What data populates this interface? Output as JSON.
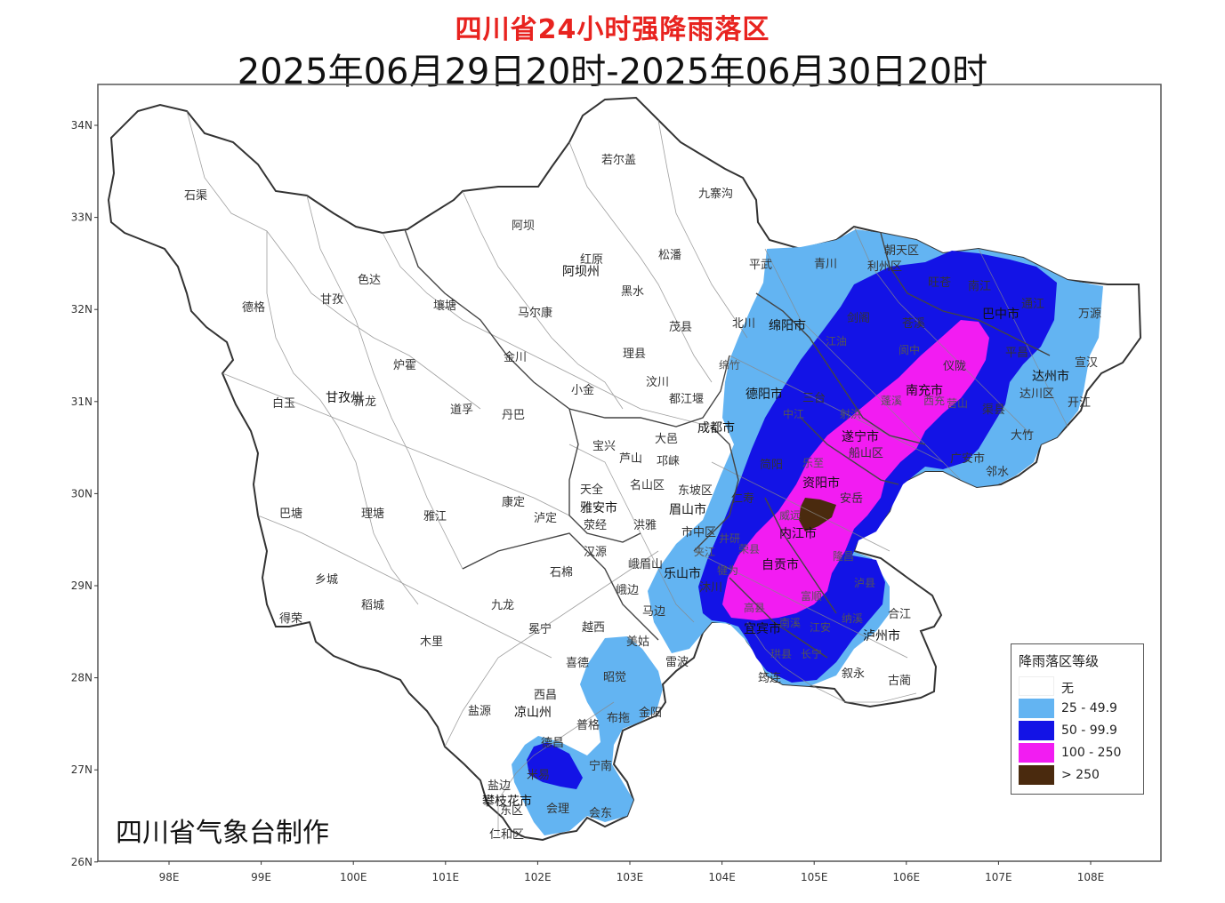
{
  "title": "四川省24小时强降雨落区",
  "subtitle": "2025年06月29日20时-2025年06月30日20时",
  "credit": "四川省气象台制作",
  "lat_labels": [
    "34N",
    "33N",
    "32N",
    "31N",
    "30N",
    "29N",
    "28N",
    "27N",
    "26N"
  ],
  "lon_labels": [
    "98E",
    "99E",
    "100E",
    "101E",
    "102E",
    "103E",
    "104E",
    "105E",
    "106E",
    "107E",
    "108E"
  ],
  "legend": {
    "title": "降雨落区等级",
    "items": [
      {
        "label": "无",
        "color": "#ffffff"
      },
      {
        "label": "25 - 49.9",
        "color": "#63b4f2"
      },
      {
        "label": "50 - 99.9",
        "color": "#1313e6"
      },
      {
        "label": "100 - 250",
        "color": "#f21cf2"
      },
      {
        "label": "> 250",
        "color": "#4a2a0e"
      }
    ]
  },
  "places": {
    "shiqu": "石渠",
    "ruoergai": "若尔盖",
    "jiuzhaigou": "九寨沟",
    "aba": "阿坝",
    "seda": "色达",
    "dege": "德格",
    "ganzi": "甘孜",
    "rangtang": "壤塘",
    "hongyuan": "红原",
    "abazhou": "阿坝州",
    "songpan": "松潘",
    "pingwu": "平武",
    "qingchuan": "青川",
    "chaotian": "朝天区",
    "lizhou": "利州区",
    "wangcang": "旺苍",
    "nanjiang": "南江",
    "tongjiang": "通江",
    "wanyuan": "万源",
    "maerkang": "马尔康",
    "heishui": "黑水",
    "maoxian": "茂县",
    "beichuan": "北川",
    "mianyang": "绵阳市",
    "jiange": "剑阁",
    "cangxi": "苍溪",
    "bazhong": "巴中市",
    "pingchang": "平昌",
    "xuanhan": "宣汉",
    "dazhou": "达州市",
    "luhuo": "炉霍",
    "jinchuan": "金川",
    "lixian": "理县",
    "wenchuan": "汶川",
    "baiyu": "白玉",
    "ganzizhou": "甘孜州",
    "xinlong": "新龙",
    "daofu": "道孚",
    "xiaojin": "小金",
    "danba": "丹巴",
    "dujiangyan": "都江堰",
    "deyang": "德阳市",
    "santai": "三台",
    "nanchong": "南充市",
    "yilong": "仪陇",
    "quxian": "渠县",
    "dachuan": "达川区",
    "kaijiang": "开江",
    "chengdu": "成都市",
    "dayi": "大邑",
    "baoxing": "宝兴",
    "lushan": "芦山",
    "qionglai": "邛崃",
    "suining": "遂宁市",
    "chuanshan": "船山区",
    "dazhu": "大竹",
    "guangan": "广安市",
    "linshui": "邻水",
    "tianquan": "天全",
    "yaan": "雅安市",
    "mingshan": "名山区",
    "dongpo": "东坡区",
    "meishan": "眉山市",
    "jianyang": "简阳",
    "renshou": "仁寿",
    "ziyang": "资阳市",
    "anyue": "安岳",
    "batang": "巴塘",
    "litang": "理塘",
    "yajiang": "雅江",
    "kangding": "康定",
    "luding": "泸定",
    "yingjing": "荥经",
    "hongya": "洪雅",
    "shizhong": "市中区",
    "neijiang": "内江市",
    "hanyuan": "汉源",
    "shimian": "石棉",
    "emeishan": "峨眉山",
    "leshan": "乐山市",
    "zigong": "自贡市",
    "xiangcheng": "乡城",
    "daocheng": "稻城",
    "jiulong": "九龙",
    "ebian": "峨边",
    "mabian": "马边",
    "muchuan": "沐川",
    "yibin": "宜宾市",
    "luzhou": "泸州市",
    "hejiang": "合江",
    "xuyong": "叙永",
    "gulin": "古蔺",
    "junlian": "筠连",
    "derong": "得荣",
    "muli": "木里",
    "mianning": "冕宁",
    "yuexi": "越西",
    "meigu": "美姑",
    "leibo": "雷波",
    "xide": "喜德",
    "zhaojue": "昭觉",
    "xichang": "西昌",
    "liangshan": "凉山州",
    "yanyuan": "盐源",
    "puge": "普格",
    "butuo": "布拖",
    "jinyang": "金阳",
    "dechang": "德昌",
    "miyi": "米易",
    "yanbian": "盐边",
    "panzhihua": "攀枝花市",
    "dongqu": "东区",
    "renhe": "仁和区",
    "huili": "会理",
    "huidong": "会东",
    "ningnan": "宁南",
    "jiangyou": "江油",
    "mianzhu": "绵竹",
    "zhongjiang": "中江",
    "shehong": "射洪",
    "pengxi": "蓬溪",
    "langzhong": "阆中",
    "xichong": "西充",
    "yingshan": "营山",
    "lezhi": "乐至",
    "longchang": "隆昌",
    "rongxian": "荣县",
    "fushun": "富顺",
    "weiyuan": "威远",
    "jiajiang": "夹江",
    "jingyan": "井研",
    "qianwei": "犍为",
    "nanxi": "南溪",
    "jiangan": "江安",
    "changning": "长宁",
    "gongxian": "珙县",
    "gaoxian": "高县",
    "luxian": "泸县",
    "naxi": "纳溪"
  }
}
